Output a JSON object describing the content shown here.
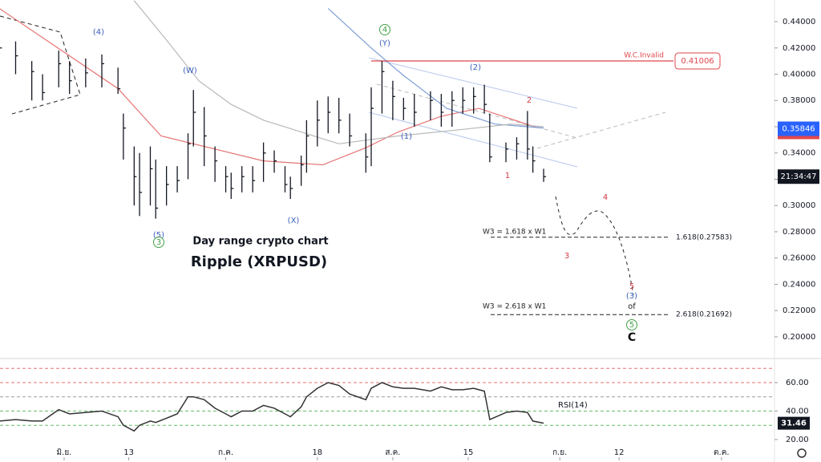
{
  "chart_data": {
    "type": "ohlc",
    "title": "Ripple (XRPUSD)",
    "subtitle": "Day range crypto chart",
    "x": [
      -12,
      -9,
      -6,
      -4,
      -1,
      1,
      4,
      7,
      10,
      11,
      13,
      14,
      16,
      17,
      19,
      21,
      23,
      24,
      26,
      28,
      30,
      31,
      33,
      35,
      37,
      39,
      41,
      42,
      44,
      45,
      47,
      49,
      51,
      53,
      56,
      57,
      59,
      61,
      63,
      65,
      68,
      70,
      72,
      74,
      76,
      78,
      79,
      82,
      84,
      86,
      87,
      89
    ],
    "high": [
      0.432,
      0.425,
      0.41,
      0.4,
      0.418,
      0.41,
      0.412,
      0.415,
      0.405,
      0.37,
      0.345,
      0.34,
      0.345,
      0.335,
      0.33,
      0.33,
      0.355,
      0.388,
      0.375,
      0.345,
      0.33,
      0.325,
      0.33,
      0.33,
      0.348,
      0.342,
      0.33,
      0.322,
      0.338,
      0.365,
      0.38,
      0.383,
      0.382,
      0.37,
      0.355,
      0.39,
      0.41,
      0.395,
      0.382,
      0.385,
      0.387,
      0.385,
      0.387,
      0.39,
      0.39,
      0.392,
      0.37,
      0.348,
      0.352,
      0.372,
      0.345,
      0.328
    ],
    "low": [
      0.405,
      0.4,
      0.38,
      0.38,
      0.39,
      0.385,
      0.39,
      0.39,
      0.385,
      0.335,
      0.3,
      0.292,
      0.3,
      0.29,
      0.3,
      0.31,
      0.32,
      0.345,
      0.33,
      0.318,
      0.31,
      0.305,
      0.31,
      0.31,
      0.318,
      0.325,
      0.31,
      0.305,
      0.315,
      0.325,
      0.345,
      0.355,
      0.355,
      0.345,
      0.325,
      0.33,
      0.37,
      0.365,
      0.365,
      0.36,
      0.365,
      0.36,
      0.36,
      0.37,
      0.37,
      0.37,
      0.333,
      0.333,
      0.335,
      0.335,
      0.325,
      0.318
    ],
    "close": [
      0.42,
      0.414,
      0.402,
      0.386,
      0.408,
      0.395,
      0.401,
      0.408,
      0.389,
      0.359,
      0.322,
      0.31,
      0.328,
      0.298,
      0.316,
      0.319,
      0.347,
      0.371,
      0.353,
      0.334,
      0.322,
      0.313,
      0.322,
      0.319,
      0.34,
      0.334,
      0.316,
      0.313,
      0.331,
      0.353,
      0.365,
      0.371,
      0.365,
      0.353,
      0.337,
      0.374,
      0.402,
      0.383,
      0.374,
      0.371,
      0.38,
      0.371,
      0.38,
      0.38,
      0.383,
      0.377,
      0.337,
      0.343,
      0.347,
      0.343,
      0.334,
      0.322
    ],
    "bar_color": "#131722",
    "moving_averages": [
      {
        "color": "#e57373",
        "x": [
          -12,
          10,
          18,
          27,
          37,
          48,
          56,
          62,
          70,
          77,
          88
        ],
        "values": [
          0.45,
          0.389,
          0.353,
          0.344,
          0.334,
          0.331,
          0.344,
          0.356,
          0.368,
          0.374,
          0.359
        ]
      },
      {
        "color": "#7e9fd6",
        "x": [
          49,
          57,
          63,
          71,
          80,
          89
        ],
        "values": [
          0.45,
          0.42,
          0.399,
          0.374,
          0.362,
          0.359
        ]
      },
      {
        "color": "#b8b8b8",
        "x": [
          13,
          19,
          25,
          31,
          37,
          51,
          62,
          74,
          83,
          89
        ],
        "values": [
          0.456,
          0.426,
          0.395,
          0.377,
          0.365,
          0.347,
          0.353,
          0.358,
          0.362,
          0.36
        ]
      }
    ],
    "xlim": [
      -11.9,
      131.7
    ],
    "xticks": [
      {
        "value": 0,
        "label": "มิ.ย."
      },
      {
        "value": 12,
        "label": "13"
      },
      {
        "value": 30,
        "label": "ก.ค."
      },
      {
        "value": 47,
        "label": "18"
      },
      {
        "value": 61,
        "label": "ส.ค."
      },
      {
        "value": 75,
        "label": "15"
      },
      {
        "value": 92,
        "label": "ก.ย."
      },
      {
        "value": 103,
        "label": "12"
      },
      {
        "value": 122,
        "label": "ต.ค."
      }
    ],
    "ylim": [
      0.1847,
      0.4565
    ],
    "yticks": [
      {
        "value": 0.2,
        "label": "0.20000"
      },
      {
        "value": 0.22,
        "label": "0.22000"
      },
      {
        "value": 0.24,
        "label": "0.24000"
      },
      {
        "value": 0.26,
        "label": "0.26000"
      },
      {
        "value": 0.28,
        "label": "0.28000"
      },
      {
        "value": 0.3,
        "label": "0.30000"
      },
      {
        "value": 0.32,
        "label": "0.32000"
      },
      {
        "value": 0.34,
        "label": "0.34000"
      },
      {
        "value": 0.36,
        "label": "0.36000"
      },
      {
        "value": 0.38,
        "label": "0.38000"
      },
      {
        "value": 0.4,
        "label": "0.40000"
      },
      {
        "value": 0.42,
        "label": "0.42000"
      },
      {
        "value": 0.44,
        "label": "0.44000"
      }
    ],
    "invalid_level": {
      "name": "W.C.Invalid",
      "value": 0.41006,
      "label": "0.41006",
      "color": "#e0474c"
    },
    "fib_levels": [
      {
        "value": 0.27583,
        "label": "1.618(0.27583)"
      },
      {
        "value": 0.21692,
        "label": "2.618(0.21692)"
      }
    ],
    "marker_price": {
      "value": 0.35846,
      "label": "0.35846",
      "color": "#2962ff"
    },
    "countdown": "21:34:47",
    "annotations": [
      "4",
      "(Y)",
      "(4)",
      "(W)",
      "(5)",
      "3",
      "(X)",
      "(1)",
      "(2)",
      "1",
      "2",
      "3",
      "4",
      "5",
      "(3)",
      "of",
      "5",
      "C",
      "W3 = 1.618 x W1",
      "W3 = 2.618 x W1"
    ],
    "rsi": {
      "name": "RSI(14)",
      "color": "#333333",
      "values": [
        33,
        34,
        33,
        33,
        41,
        38,
        39,
        40,
        36,
        30,
        26,
        30,
        33,
        32,
        35,
        38,
        50,
        50,
        48,
        42,
        38,
        36,
        40,
        40,
        44,
        42,
        38,
        36,
        43,
        50,
        56,
        60,
        58,
        52,
        48,
        56,
        60,
        57,
        56,
        56,
        54,
        57,
        55,
        55,
        56,
        54,
        34,
        39,
        40,
        39,
        33,
        31.46
      ],
      "value_labels": {
        "51": "31.46"
      },
      "ylim": [
        7.6,
        75.2
      ],
      "yticks": [
        {
          "value": 20,
          "label": "20.00"
        },
        {
          "value": 40,
          "label": "40.00"
        },
        {
          "value": 60,
          "label": "60.00"
        }
      ],
      "levels": [
        70,
        60,
        50,
        40,
        30
      ],
      "level_colors": [
        "#e57373",
        "#e57373",
        "#9e9e9e",
        "#66bb6a",
        "#66bb6a"
      ]
    }
  }
}
